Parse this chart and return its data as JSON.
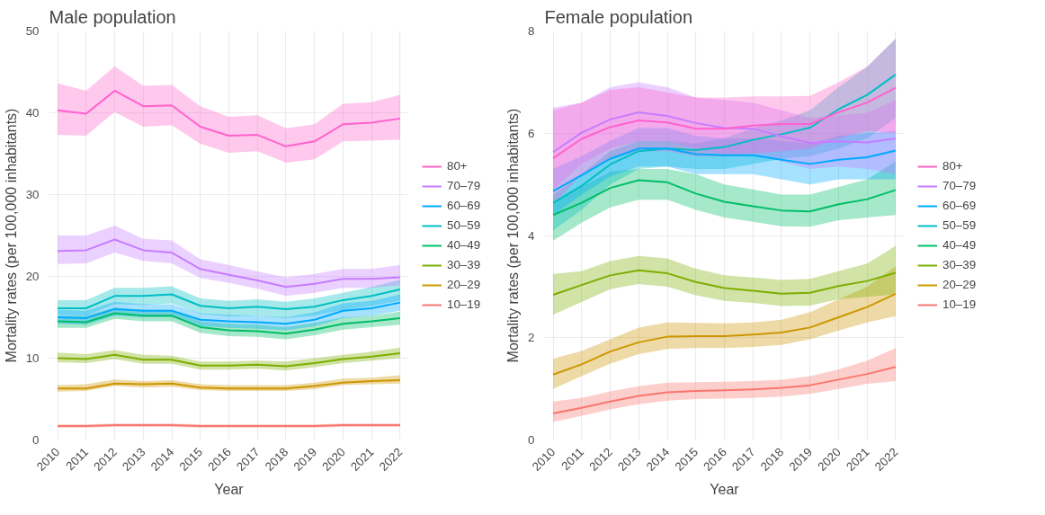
{
  "chart_data": [
    {
      "type": "line",
      "title": "Male population",
      "xlabel": "Year",
      "ylabel": "Mortality rates (per 100,000 inhabitants)",
      "x": [
        2010,
        2011,
        2012,
        2013,
        2014,
        2015,
        2016,
        2017,
        2018,
        2019,
        2020,
        2021,
        2022
      ],
      "xlim": [
        2009.7,
        2022.3
      ],
      "xticks": [
        2010,
        2011,
        2012,
        2013,
        2014,
        2015,
        2016,
        2017,
        2018,
        2019,
        2020,
        2021,
        2022
      ],
      "ylim": [
        0,
        50
      ],
      "yticks": [
        0,
        10,
        20,
        30,
        40,
        50
      ],
      "grid": true,
      "legend": "right",
      "line_style": "solid",
      "marker": "none",
      "series": [
        {
          "name": "80+",
          "color": "#ff61cc",
          "values": [
            40.3,
            39.9,
            42.7,
            40.8,
            40.9,
            38.3,
            37.2,
            37.3,
            35.9,
            36.5,
            38.6,
            38.8,
            39.3
          ],
          "lower": [
            37.3,
            37.2,
            40.1,
            38.3,
            38.5,
            36.2,
            35.1,
            35.3,
            33.9,
            34.3,
            36.5,
            36.6,
            36.7
          ],
          "upper": [
            43.6,
            42.7,
            45.7,
            43.3,
            43.4,
            40.8,
            39.5,
            39.7,
            38.1,
            38.6,
            41.1,
            41.3,
            42.2
          ]
        },
        {
          "name": "70–79",
          "color": "#c77cff",
          "values": [
            23.1,
            23.2,
            24.5,
            23.2,
            22.9,
            20.9,
            20.2,
            19.5,
            18.7,
            19.1,
            19.7,
            19.7,
            19.9
          ],
          "lower": [
            21.5,
            21.6,
            22.9,
            21.9,
            21.6,
            19.8,
            19.2,
            18.5,
            17.6,
            18.0,
            18.6,
            18.6,
            18.9
          ],
          "upper": [
            25.0,
            25.0,
            26.2,
            24.6,
            24.4,
            22.1,
            21.4,
            20.6,
            19.9,
            20.3,
            20.9,
            20.9,
            21.4
          ]
        },
        {
          "name": "60–69",
          "color": "#00a9ff",
          "values": [
            15.0,
            14.9,
            16.0,
            15.8,
            15.8,
            14.7,
            14.5,
            14.4,
            14.2,
            14.7,
            15.8,
            16.1,
            16.8
          ],
          "lower": [
            14.2,
            14.1,
            15.2,
            15.0,
            15.0,
            13.9,
            13.7,
            13.6,
            13.4,
            13.9,
            14.9,
            15.2,
            15.8
          ],
          "upper": [
            15.9,
            15.8,
            16.9,
            16.6,
            16.6,
            15.5,
            15.3,
            15.2,
            15.0,
            15.6,
            16.7,
            17.0,
            17.8
          ]
        },
        {
          "name": "50–59",
          "color": "#00bfc4",
          "values": [
            16.1,
            16.1,
            17.6,
            17.6,
            17.8,
            16.4,
            16.1,
            16.3,
            16.0,
            16.3,
            17.1,
            17.6,
            18.4
          ],
          "lower": [
            15.3,
            15.2,
            16.6,
            16.5,
            16.7,
            15.4,
            15.1,
            15.2,
            14.9,
            15.2,
            15.9,
            16.4,
            17.0
          ],
          "upper": [
            17.1,
            17.1,
            18.6,
            18.6,
            18.8,
            17.3,
            17.0,
            17.2,
            16.9,
            17.3,
            18.0,
            18.7,
            19.6
          ]
        },
        {
          "name": "40–49",
          "color": "#00be67",
          "values": [
            14.5,
            14.4,
            15.5,
            15.2,
            15.2,
            13.8,
            13.4,
            13.3,
            13.0,
            13.5,
            14.2,
            14.5,
            14.9
          ],
          "lower": [
            13.7,
            13.7,
            14.8,
            14.5,
            14.5,
            13.1,
            12.7,
            12.6,
            12.3,
            12.8,
            13.5,
            13.8,
            14.1
          ],
          "upper": [
            15.2,
            15.2,
            16.2,
            15.9,
            15.9,
            14.5,
            14.2,
            14.1,
            13.8,
            14.3,
            15.0,
            15.2,
            15.7
          ]
        },
        {
          "name": "30–39",
          "color": "#7cae00",
          "values": [
            10.0,
            9.9,
            10.4,
            9.8,
            9.8,
            9.1,
            9.1,
            9.2,
            9.0,
            9.4,
            9.9,
            10.2,
            10.6
          ],
          "lower": [
            9.5,
            9.4,
            9.9,
            9.3,
            9.3,
            8.6,
            8.6,
            8.7,
            8.5,
            8.9,
            9.4,
            9.7,
            10.0
          ],
          "upper": [
            10.7,
            10.5,
            11.0,
            10.4,
            10.3,
            9.6,
            9.6,
            9.7,
            9.6,
            10.0,
            10.4,
            10.8,
            11.3
          ]
        },
        {
          "name": "20–29",
          "color": "#cd9600",
          "values": [
            6.3,
            6.3,
            6.9,
            6.8,
            6.9,
            6.4,
            6.3,
            6.3,
            6.3,
            6.6,
            7.0,
            7.2,
            7.3
          ],
          "lower": [
            5.9,
            6.0,
            6.6,
            6.4,
            6.5,
            6.1,
            6.0,
            6.0,
            6.0,
            6.2,
            6.7,
            6.8,
            6.9
          ],
          "upper": [
            6.7,
            6.8,
            7.4,
            7.2,
            7.3,
            6.8,
            6.7,
            6.7,
            6.7,
            7.0,
            7.5,
            7.6,
            7.9
          ]
        },
        {
          "name": "10–19",
          "color": "#f8766d",
          "values": [
            1.7,
            1.7,
            1.8,
            1.8,
            1.8,
            1.7,
            1.7,
            1.7,
            1.7,
            1.7,
            1.8,
            1.8,
            1.8
          ],
          "lower": [
            1.5,
            1.5,
            1.6,
            1.6,
            1.6,
            1.5,
            1.5,
            1.5,
            1.5,
            1.5,
            1.6,
            1.6,
            1.6
          ],
          "upper": [
            1.9,
            1.9,
            2.0,
            2.0,
            2.0,
            1.9,
            1.9,
            1.9,
            1.9,
            1.9,
            2.0,
            2.0,
            2.0
          ]
        }
      ]
    },
    {
      "type": "line",
      "title": "Female population",
      "xlabel": "Year",
      "ylabel": "Mortality rates (per 100,000 inhabitants)",
      "x": [
        2010,
        2011,
        2012,
        2013,
        2014,
        2015,
        2016,
        2017,
        2018,
        2019,
        2020,
        2021,
        2022
      ],
      "xlim": [
        2009.7,
        2022.3
      ],
      "xticks": [
        2010,
        2011,
        2012,
        2013,
        2014,
        2015,
        2016,
        2017,
        2018,
        2019,
        2020,
        2021,
        2022
      ],
      "ylim": [
        0,
        8
      ],
      "yticks": [
        0,
        2,
        4,
        6,
        8
      ],
      "grid": true,
      "legend": "right",
      "line_style": "solid",
      "marker": "none",
      "series": [
        {
          "name": "80+",
          "color": "#ff61cc",
          "values": [
            5.51,
            5.89,
            6.12,
            6.25,
            6.21,
            6.09,
            6.09,
            6.15,
            6.18,
            6.18,
            6.41,
            6.6,
            6.89
          ],
          "lower": [
            4.6,
            5.2,
            5.5,
            5.65,
            5.65,
            5.55,
            5.55,
            5.6,
            5.65,
            5.7,
            5.9,
            6.05,
            6.0
          ],
          "upper": [
            6.45,
            6.6,
            6.85,
            6.9,
            6.8,
            6.7,
            6.7,
            6.72,
            6.72,
            6.73,
            7.0,
            7.3,
            7.85
          ]
        },
        {
          "name": "70–79",
          "color": "#c77cff",
          "values": [
            5.63,
            6.01,
            6.27,
            6.41,
            6.34,
            6.2,
            6.1,
            6.09,
            5.94,
            5.81,
            5.84,
            5.82,
            5.9
          ],
          "lower": [
            4.9,
            5.4,
            5.7,
            5.85,
            5.85,
            5.7,
            5.6,
            5.6,
            5.45,
            5.3,
            5.35,
            5.3,
            5.2
          ],
          "upper": [
            6.5,
            6.6,
            6.9,
            7.0,
            6.9,
            6.7,
            6.65,
            6.6,
            6.45,
            6.3,
            6.35,
            6.4,
            6.65
          ]
        },
        {
          "name": "60–69",
          "color": "#00a9ff",
          "values": [
            4.87,
            5.18,
            5.5,
            5.7,
            5.7,
            5.59,
            5.57,
            5.57,
            5.48,
            5.4,
            5.48,
            5.53,
            5.66
          ],
          "lower": [
            4.4,
            4.8,
            5.15,
            5.35,
            5.35,
            5.2,
            5.2,
            5.2,
            5.1,
            5.0,
            5.1,
            5.1,
            5.1
          ],
          "upper": [
            5.3,
            5.55,
            5.85,
            6.1,
            6.1,
            5.95,
            5.9,
            5.9,
            5.85,
            5.8,
            5.95,
            6.0,
            6.05
          ]
        },
        {
          "name": "50–59",
          "color": "#00bfc4",
          "values": [
            4.64,
            4.97,
            5.39,
            5.65,
            5.7,
            5.67,
            5.73,
            5.87,
            5.98,
            6.11,
            6.47,
            6.75,
            7.15
          ],
          "lower": [
            4.1,
            4.5,
            5.0,
            5.3,
            5.35,
            5.3,
            5.3,
            5.4,
            5.5,
            5.55,
            5.7,
            5.9,
            6.3
          ],
          "upper": [
            4.8,
            5.2,
            5.65,
            5.85,
            5.85,
            5.8,
            5.9,
            6.1,
            6.25,
            6.45,
            6.9,
            7.3,
            7.85
          ]
        },
        {
          "name": "40–49",
          "color": "#00be67",
          "values": [
            4.4,
            4.64,
            4.93,
            5.08,
            5.04,
            4.82,
            4.66,
            4.57,
            4.49,
            4.47,
            4.61,
            4.71,
            4.89
          ],
          "lower": [
            3.9,
            4.25,
            4.55,
            4.7,
            4.7,
            4.5,
            4.35,
            4.27,
            4.18,
            4.17,
            4.3,
            4.35,
            4.4
          ],
          "upper": [
            4.65,
            4.95,
            5.25,
            5.3,
            5.3,
            5.2,
            5.0,
            4.9,
            4.8,
            4.8,
            4.95,
            5.1,
            5.45
          ]
        },
        {
          "name": "30–39",
          "color": "#7cae00",
          "values": [
            2.84,
            3.03,
            3.22,
            3.32,
            3.26,
            3.09,
            2.97,
            2.92,
            2.86,
            2.88,
            3.01,
            3.11,
            3.27
          ],
          "lower": [
            2.45,
            2.7,
            2.95,
            3.05,
            3.0,
            2.83,
            2.72,
            2.68,
            2.62,
            2.63,
            2.75,
            2.8,
            2.85
          ],
          "upper": [
            3.25,
            3.3,
            3.5,
            3.6,
            3.55,
            3.35,
            3.22,
            3.18,
            3.13,
            3.15,
            3.3,
            3.45,
            3.8
          ]
        },
        {
          "name": "20–29",
          "color": "#cd9600",
          "values": [
            1.28,
            1.48,
            1.73,
            1.91,
            2.02,
            2.03,
            2.03,
            2.06,
            2.1,
            2.2,
            2.4,
            2.6,
            2.86
          ],
          "lower": [
            1.0,
            1.25,
            1.49,
            1.68,
            1.78,
            1.8,
            1.8,
            1.82,
            1.86,
            1.97,
            2.14,
            2.3,
            2.42
          ],
          "upper": [
            1.59,
            1.74,
            1.97,
            2.2,
            2.3,
            2.29,
            2.28,
            2.3,
            2.35,
            2.5,
            2.75,
            3.0,
            3.4
          ]
        },
        {
          "name": "10–19",
          "color": "#f8766d",
          "values": [
            0.52,
            0.63,
            0.75,
            0.86,
            0.93,
            0.96,
            0.97,
            0.99,
            1.02,
            1.07,
            1.18,
            1.29,
            1.43
          ],
          "lower": [
            0.35,
            0.47,
            0.6,
            0.7,
            0.77,
            0.8,
            0.81,
            0.82,
            0.85,
            0.9,
            1.0,
            1.1,
            1.15
          ],
          "upper": [
            0.75,
            0.82,
            0.95,
            1.05,
            1.12,
            1.13,
            1.14,
            1.15,
            1.18,
            1.25,
            1.38,
            1.55,
            1.8
          ]
        }
      ]
    }
  ]
}
